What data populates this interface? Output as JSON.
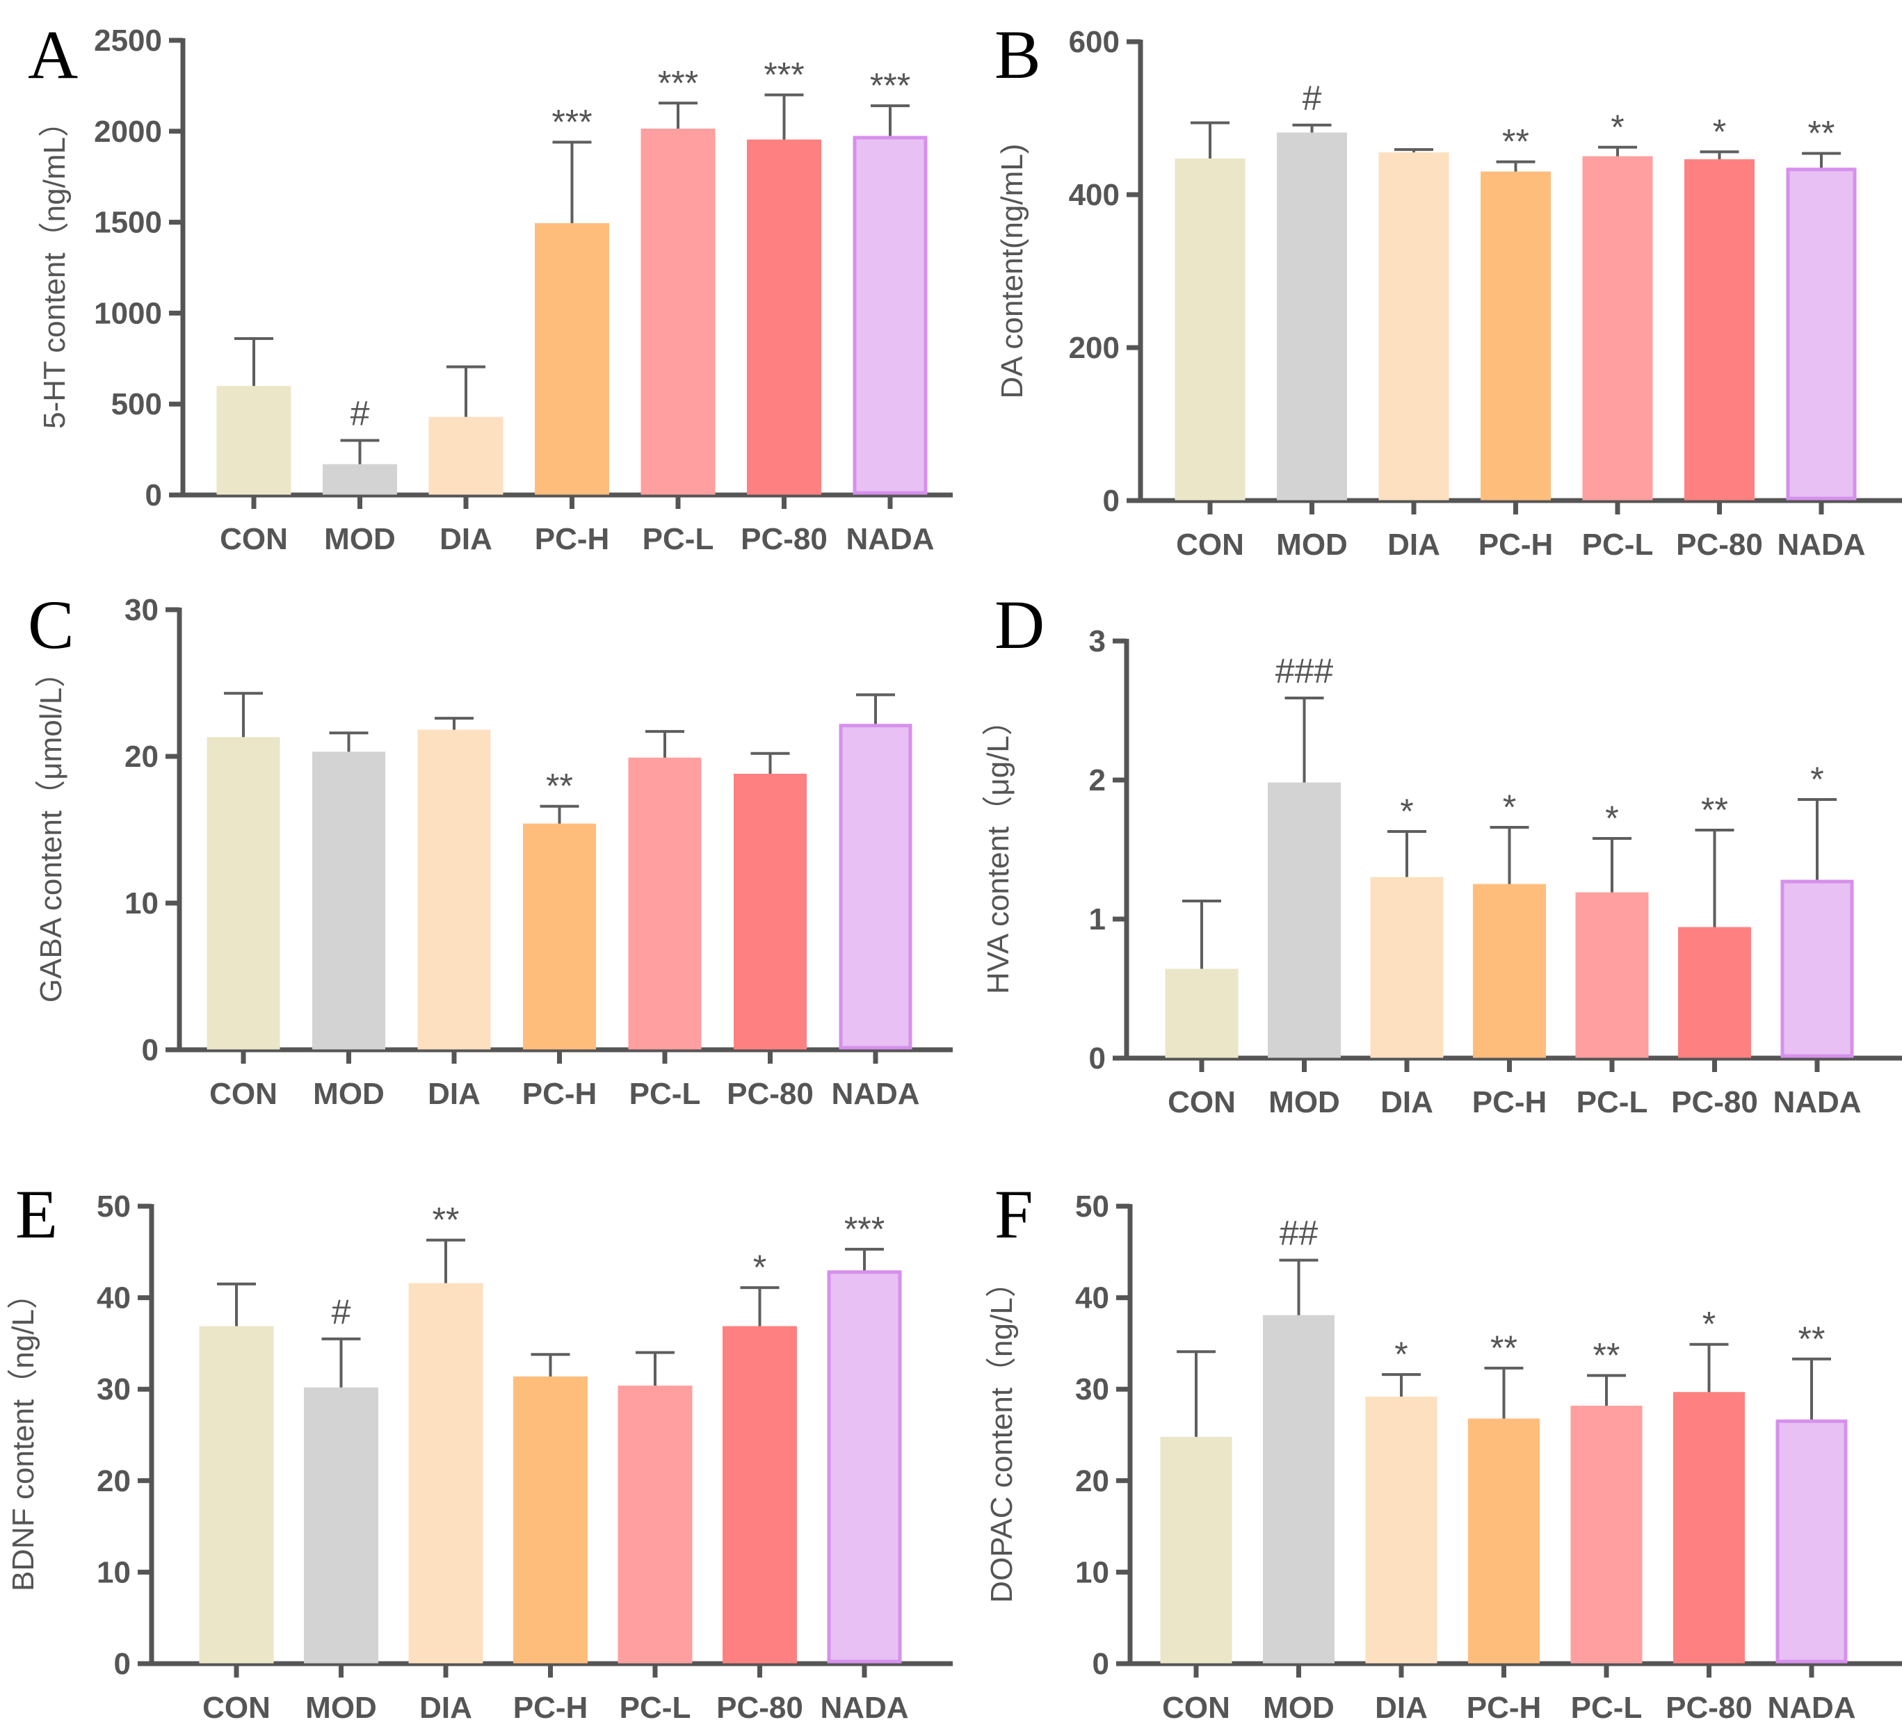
{
  "chart_data": [
    {
      "type": "bar",
      "panel": "A",
      "ylabel": "5-HT content（ng/mL）",
      "ylim": [
        0,
        2500
      ],
      "yticks": [
        0,
        500,
        1000,
        1500,
        2000,
        2500
      ],
      "categories": [
        "CON",
        "MOD",
        "DIA",
        "PC-H",
        "PC-L",
        "PC-80",
        "NADA"
      ],
      "values": [
        590,
        160,
        420,
        1485,
        2005,
        1945,
        1965
      ],
      "errors": [
        270,
        140,
        285,
        455,
        150,
        255,
        175
      ],
      "significance": [
        "",
        "#",
        "",
        "***",
        "***",
        "***",
        "***"
      ]
    },
    {
      "type": "bar",
      "panel": "B",
      "ylabel": "DA content(ng/mL)",
      "ylim": [
        0,
        600
      ],
      "yticks": [
        0,
        200,
        400,
        600
      ],
      "categories": [
        "CON",
        "MOD",
        "DIA",
        "PC-H",
        "PC-L",
        "PC-80",
        "NADA"
      ],
      "values": [
        445,
        479,
        453,
        428,
        448,
        444,
        433
      ],
      "errors": [
        49,
        12,
        6,
        15,
        14,
        12,
        21
      ],
      "significance": [
        "",
        "#",
        "",
        "**",
        "*",
        "*",
        "**"
      ]
    },
    {
      "type": "bar",
      "panel": "C",
      "ylabel": "GABA content（μmol/L）",
      "ylim": [
        0,
        30
      ],
      "yticks": [
        0,
        10,
        20,
        30
      ],
      "categories": [
        "CON",
        "MOD",
        "DIA",
        "PC-H",
        "PC-L",
        "PC-80",
        "NADA"
      ],
      "values": [
        21.2,
        20.2,
        21.7,
        15.3,
        19.8,
        18.7,
        22.1
      ],
      "errors": [
        3.1,
        1.4,
        0.9,
        1.3,
        1.9,
        1.5,
        2.1
      ],
      "significance": [
        "",
        "",
        "",
        "**",
        "",
        "",
        ""
      ]
    },
    {
      "type": "bar",
      "panel": "D",
      "ylabel": "HVA content（μg/L）",
      "ylim": [
        0,
        3
      ],
      "yticks": [
        0,
        1,
        2,
        3
      ],
      "categories": [
        "CON",
        "MOD",
        "DIA",
        "PC-H",
        "PC-L",
        "PC-80",
        "NADA"
      ],
      "values": [
        0.63,
        1.97,
        1.29,
        1.24,
        1.18,
        0.93,
        1.27
      ],
      "errors": [
        0.5,
        0.62,
        0.34,
        0.42,
        0.4,
        0.71,
        0.59
      ],
      "significance": [
        "",
        "###",
        "*",
        "*",
        "*",
        "**",
        "*"
      ]
    },
    {
      "type": "bar",
      "panel": "E",
      "ylabel": "BDNF content（ng/L）",
      "ylim": [
        0,
        50
      ],
      "yticks": [
        0,
        10,
        20,
        30,
        40,
        50
      ],
      "categories": [
        "CON",
        "MOD",
        "DIA",
        "PC-H",
        "PC-L",
        "PC-80",
        "NADA"
      ],
      "values": [
        36.7,
        30.0,
        41.4,
        31.2,
        30.2,
        36.7,
        42.8
      ],
      "errors": [
        4.8,
        5.5,
        4.9,
        2.6,
        3.8,
        4.4,
        2.5
      ],
      "significance": [
        "",
        "#",
        "**",
        "",
        "",
        "*",
        "***"
      ]
    },
    {
      "type": "bar",
      "panel": "F",
      "ylabel": "DOPAC content（ng/L）",
      "ylim": [
        0,
        50
      ],
      "yticks": [
        0,
        10,
        20,
        30,
        40,
        50
      ],
      "categories": [
        "CON",
        "MOD",
        "DIA",
        "PC-H",
        "PC-L",
        "PC-80",
        "NADA"
      ],
      "values": [
        24.6,
        37.9,
        29.0,
        26.6,
        28.0,
        29.5,
        26.5
      ],
      "errors": [
        9.5,
        6.2,
        2.6,
        5.7,
        3.5,
        5.4,
        6.8
      ],
      "significance": [
        "",
        "##",
        "*",
        "**",
        "**",
        "*",
        "**"
      ]
    }
  ],
  "colors": {
    "bar_fills": [
      "#ebe6c8",
      "#d3d3d3",
      "#fde0c0",
      "#ffbd7c",
      "#ff9f9f",
      "#ff8080",
      "#e8c0f3"
    ],
    "bar_strokes": [
      "#ebe6c8",
      "#d3d3d3",
      "#fde0c0",
      "#ffbd7c",
      "#ff9f9f",
      "#ff8080",
      "#d690ec"
    ],
    "axis": "#555555",
    "text": "#555555"
  }
}
